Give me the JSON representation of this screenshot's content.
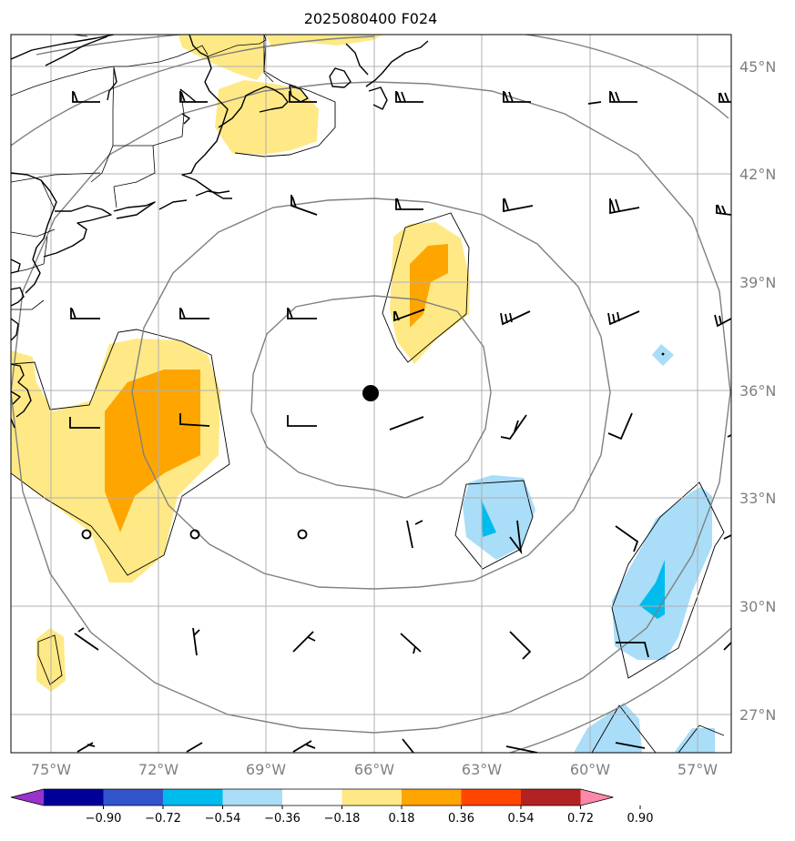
{
  "title": "2025080400 F024",
  "lat_labels": [
    "45°N",
    "42°N",
    "39°N",
    "36°N",
    "33°N",
    "30°N",
    "27°N"
  ],
  "lon_labels": [
    "75°W",
    "72°W",
    "69°W",
    "66°W",
    "63°W",
    "60°W",
    "57°W"
  ],
  "colorbar": {
    "colors": [
      "#9933cc",
      "#000099",
      "#3355cc",
      "#00bbee",
      "#aaddf7",
      "#ffffff",
      "#ffe986",
      "#ffa500",
      "#ff4500",
      "#b22222",
      "#ff88aa"
    ],
    "levels": [
      "−0.90",
      "−0.72",
      "−0.54",
      "−0.36",
      "−0.18",
      "0.18",
      "0.36",
      "0.54",
      "0.72",
      "0.90"
    ]
  },
  "storm_center": {
    "lat": 36.0,
    "lon": -66.0
  },
  "extent": {
    "lon_min": -76.0,
    "lon_max": -56.0,
    "lat_min": 26.0,
    "lat_max": 46.0
  }
}
